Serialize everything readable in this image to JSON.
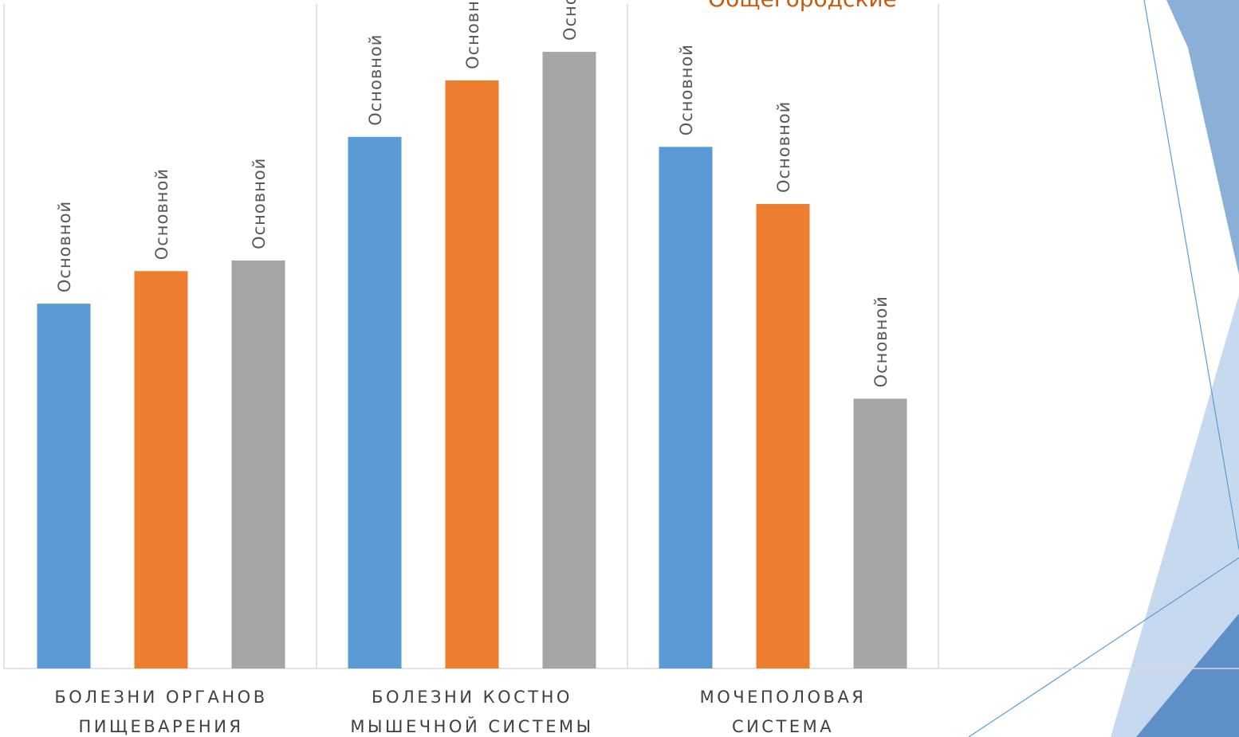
{
  "chart_data": {
    "type": "bar",
    "title": "Общегородские",
    "categories": [
      "БОЛЕЗНИ ОРГАНОВ ПИЩЕВАРЕНИЯ",
      "БОЛЕЗНИ КОСТНО МЫШЕЧНОЙ СИСТЕМЫ",
      "МОЧЕПОЛОВАЯ СИСТЕМА",
      null
    ],
    "series": [
      {
        "name": "Основной",
        "color": "#5b9bd5",
        "values": [
          54.9,
          80.0,
          78.5,
          null
        ]
      },
      {
        "name": "Основной",
        "color": "#ed7d31",
        "values": [
          59.8,
          88.5,
          69.9,
          null
        ]
      },
      {
        "name": "Основной",
        "color": "#a5a5a5",
        "values": [
          61.4,
          92.8,
          40.6,
          null
        ]
      }
    ],
    "ylim": [
      0,
      100
    ]
  }
}
